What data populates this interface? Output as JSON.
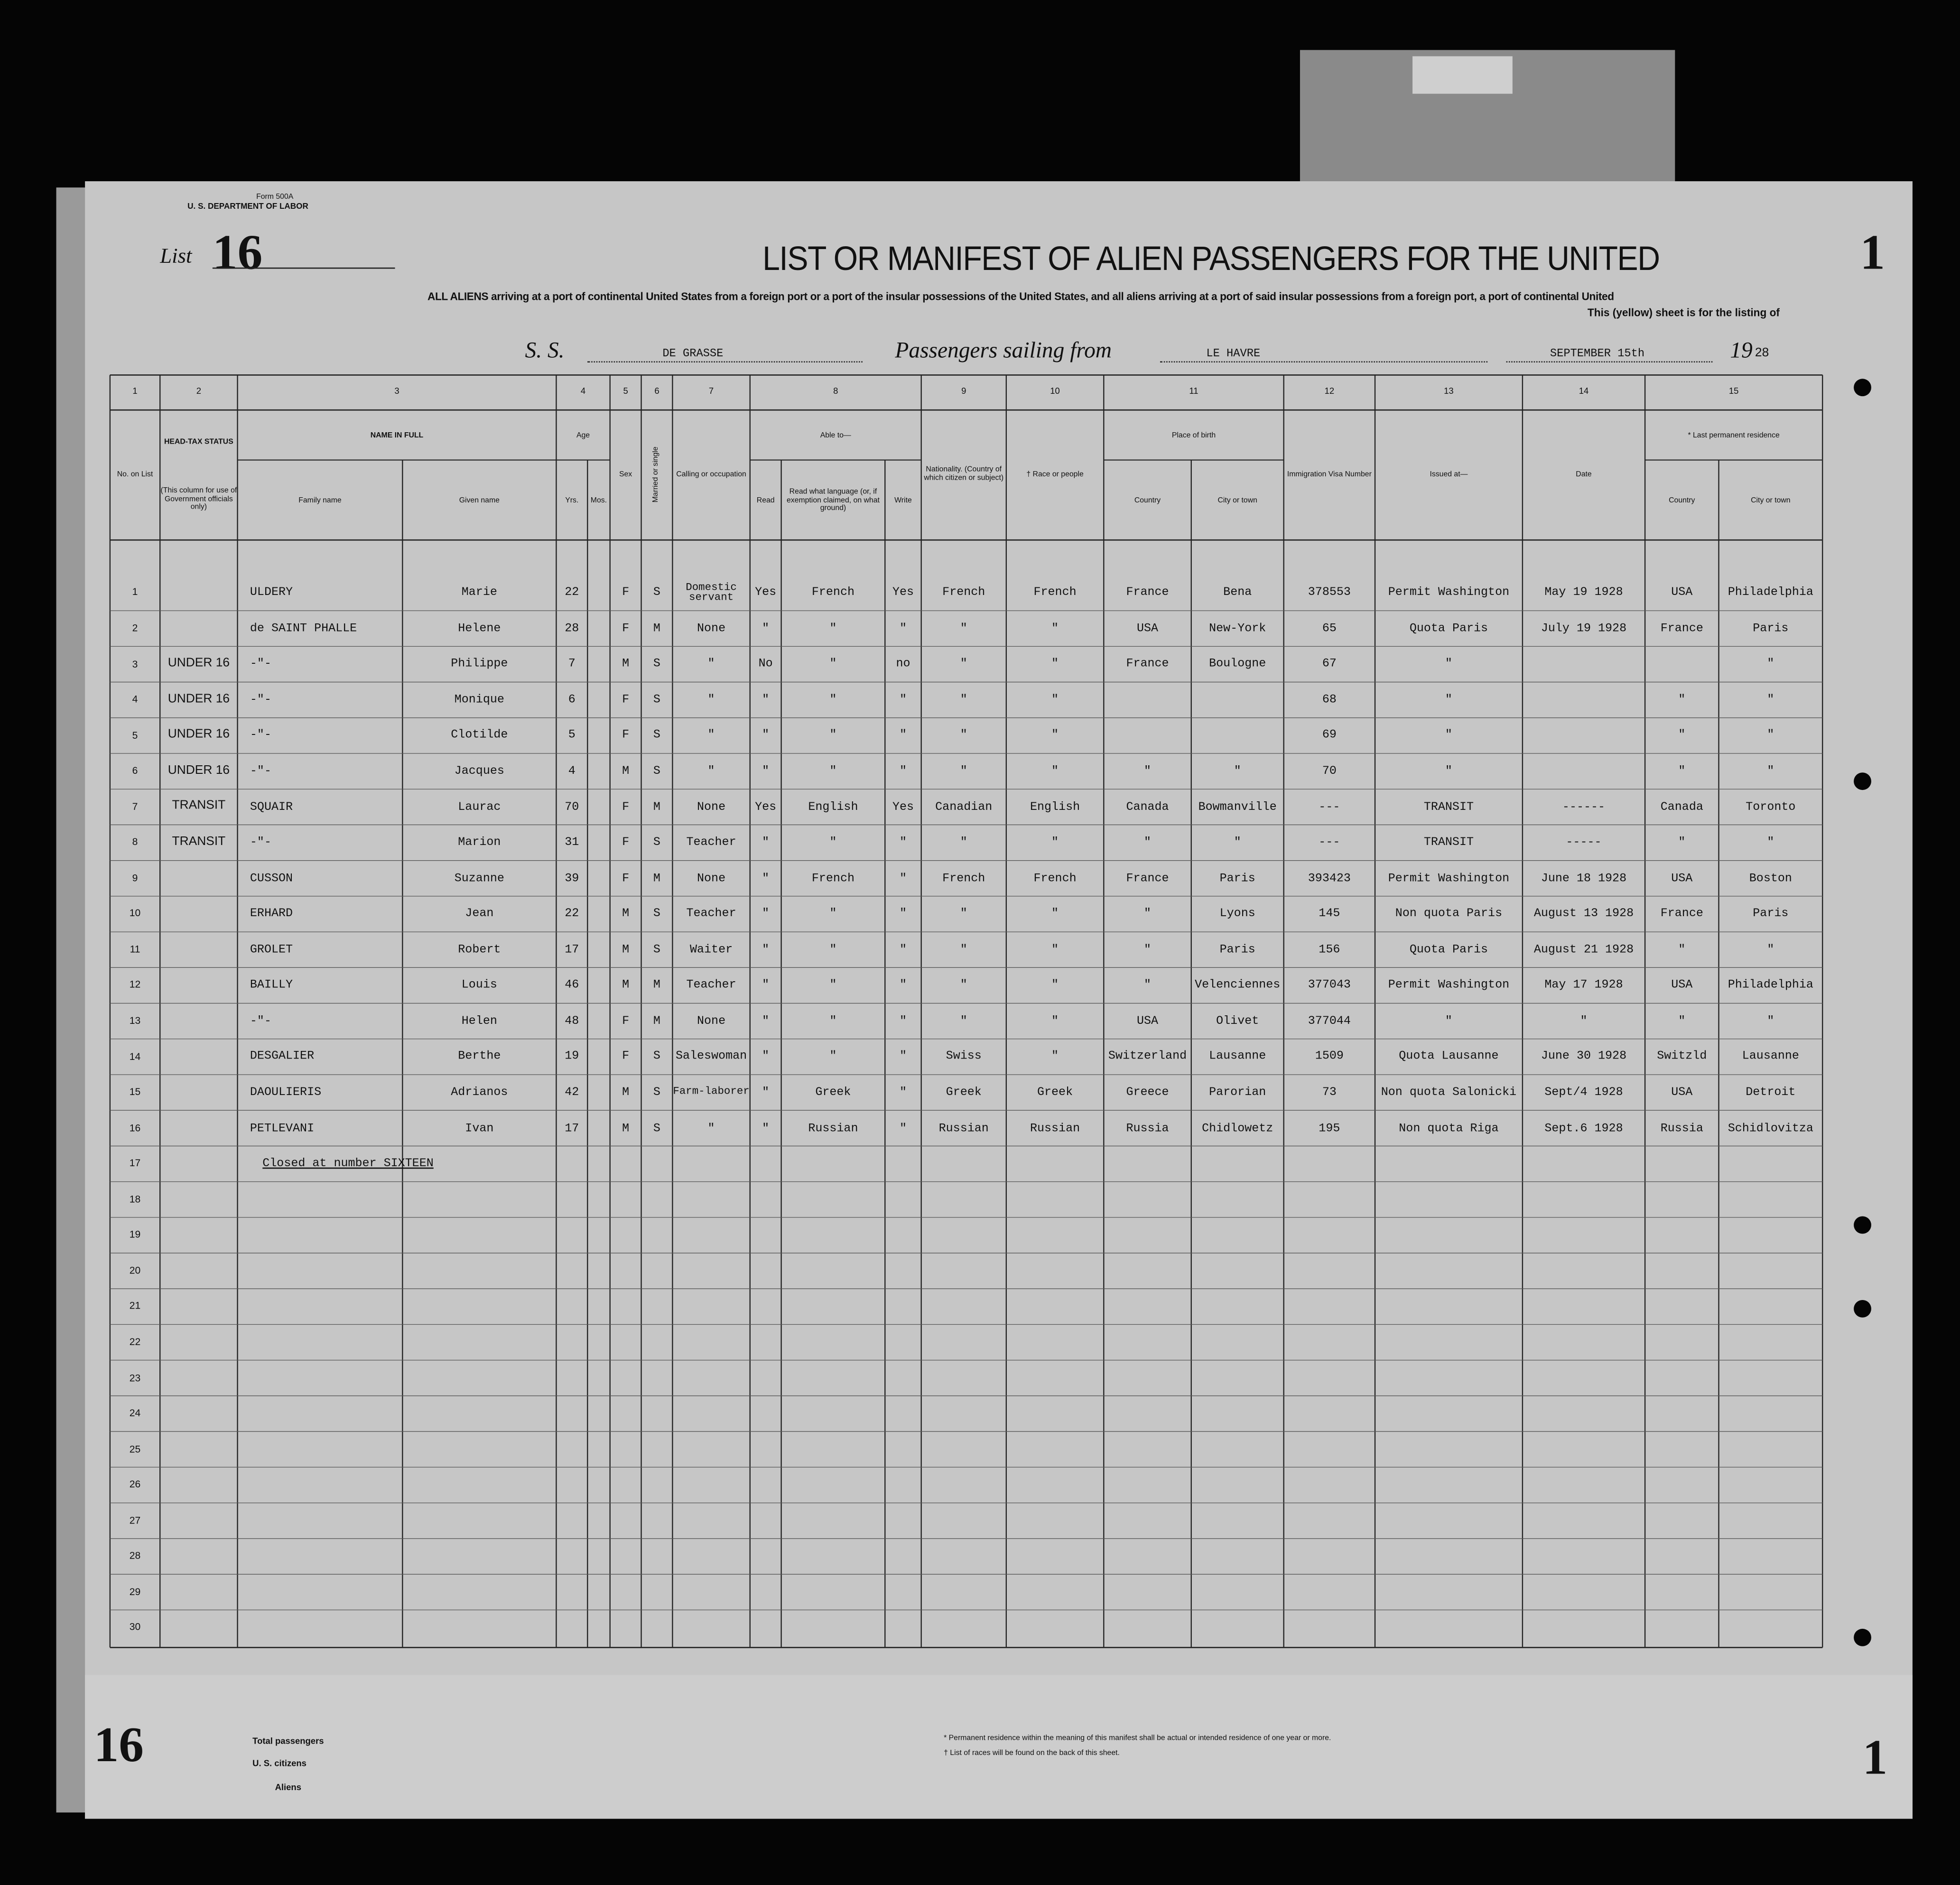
{
  "form": {
    "number": "Form 500A",
    "department": "U. S. DEPARTMENT OF LABOR"
  },
  "list_label": "List",
  "list_number": "16",
  "title": "LIST OR MANIFEST OF ALIEN PASSENGERS FOR THE UNITED",
  "page_number": "1",
  "subtitle": [
    "ALL ALIENS arriving at a port of continental United States from a foreign port or a port of the insular possessions of the United States, and all aliens arriving at a port of said insular possessions from a foreign port, a port of continental United",
    "This (yellow) sheet is for the listing of"
  ],
  "voyage": {
    "ss_label": "S. S.",
    "ship": "DE GRASSE",
    "sailing_label": "Passengers sailing from",
    "port": "LE HAVRE",
    "date": "SEPTEMBER 15th",
    "year_prefix": "19",
    "year_suffix": "28"
  },
  "columns": {
    "numbers": [
      "1",
      "2",
      "3",
      "4",
      "5",
      "6",
      "7",
      "8",
      "9",
      "10",
      "11",
      "12",
      "13",
      "14",
      "15"
    ],
    "headers": [
      "No. on List",
      "HEAD-TAX STATUS",
      "(This column for use of Government officials only)",
      "NAME IN FULL",
      "Family name",
      "Given name",
      "Age",
      "Yrs.",
      "Mos.",
      "Sex",
      "Married or single",
      "Calling or occupation",
      "Able to—",
      "Read",
      "Read what language (or, if exemption claimed, on what ground)",
      "Write",
      "Nationality. (Country of which citizen or subject)",
      "† Race or people",
      "Place of birth",
      "Country",
      "City or town",
      "Immigration Visa Number",
      "Issued at—",
      "Date",
      "* Last permanent residence",
      "Country",
      "City or town"
    ]
  },
  "rows": [
    {
      "no": "1",
      "cells": [
        null,
        "ULDERY",
        "Marie",
        "22",
        null,
        "F",
        "S",
        "Domestic servant",
        "Yes",
        "French",
        "Yes",
        "French",
        "French",
        "France",
        "Bena",
        "378553",
        "Permit Washington",
        "May 19 1928",
        "USA",
        "Philadelphia"
      ]
    },
    {
      "no": "2",
      "cells": [
        null,
        "de SAINT PHALLE",
        "Helene",
        "28",
        null,
        "F",
        "M",
        "None",
        "\"",
        "\"",
        "\"",
        "\"",
        "\"",
        "USA",
        "New-York",
        "65",
        "Quota Paris",
        "July 19 1928",
        "France",
        "Paris"
      ]
    },
    {
      "no": "3",
      "cells": [
        "UNDER 16",
        "-\"-",
        "Philippe",
        "7",
        null,
        "M",
        "S",
        "\"",
        "No",
        "\"",
        "no",
        "\"",
        "\"",
        "France",
        "Boulogne",
        "67",
        "\"",
        null,
        null,
        "\""
      ]
    },
    {
      "no": "4",
      "cells": [
        "UNDER 16",
        "-\"-",
        "Monique",
        "6",
        null,
        "F",
        "S",
        "\"",
        "\"",
        "\"",
        "\"",
        "\"",
        "\"",
        null,
        null,
        "68",
        "\"",
        null,
        "\"",
        "\""
      ]
    },
    {
      "no": "5",
      "cells": [
        "UNDER 16",
        "-\"-",
        "Clotilde",
        "5",
        null,
        "F",
        "S",
        "\"",
        "\"",
        "\"",
        "\"",
        "\"",
        "\"",
        null,
        null,
        "69",
        "\"",
        null,
        "\"",
        "\""
      ]
    },
    {
      "no": "6",
      "cells": [
        "UNDER 16",
        "-\"-",
        "Jacques",
        "4",
        null,
        "M",
        "S",
        "\"",
        "\"",
        "\"",
        "\"",
        "\"",
        "\"",
        "\"",
        "\"",
        "70",
        "\"",
        null,
        "\"",
        "\""
      ]
    },
    {
      "no": "7",
      "cells": [
        "TRANSIT",
        "SQUAIR",
        "Laurac",
        "70",
        null,
        "F",
        "M",
        "None",
        "Yes",
        "English",
        "Yes",
        "Canadian",
        "English",
        "Canada",
        "Bowmanville",
        "---",
        "TRANSIT",
        "------",
        "Canada",
        "Toronto"
      ]
    },
    {
      "no": "8",
      "cells": [
        "TRANSIT",
        "-\"-",
        "Marion",
        "31",
        null,
        "F",
        "S",
        "Teacher",
        "\"",
        "\"",
        "\"",
        "\"",
        "\"",
        "\"",
        "\"",
        "---",
        "TRANSIT",
        "-----",
        "\"",
        "\""
      ]
    },
    {
      "no": "9",
      "cells": [
        null,
        "CUSSON",
        "Suzanne",
        "39",
        null,
        "F",
        "M",
        "None",
        "\"",
        "French",
        "\"",
        "French",
        "French",
        "France",
        "Paris",
        "393423",
        "Permit Washington",
        "June 18 1928",
        "USA",
        "Boston"
      ]
    },
    {
      "no": "10",
      "cells": [
        null,
        "ERHARD",
        "Jean",
        "22",
        null,
        "M",
        "S",
        "Teacher",
        "\"",
        "\"",
        "\"",
        "\"",
        "\"",
        "\"",
        "Lyons",
        "145",
        "Non quota Paris",
        "August 13 1928",
        "France",
        "Paris"
      ]
    },
    {
      "no": "11",
      "cells": [
        null,
        "GROLET",
        "Robert",
        "17",
        null,
        "M",
        "S",
        "Waiter",
        "\"",
        "\"",
        "\"",
        "\"",
        "\"",
        "\"",
        "Paris",
        "156",
        "Quota Paris",
        "August 21 1928",
        "\"",
        "\""
      ]
    },
    {
      "no": "12",
      "cells": [
        null,
        "BAILLY",
        "Louis",
        "46",
        null,
        "M",
        "M",
        "Teacher",
        "\"",
        "\"",
        "\"",
        "\"",
        "\"",
        "\"",
        "Velenciennes",
        "377043",
        "Permit Washington",
        "May 17 1928",
        "USA",
        "Philadelphia"
      ]
    },
    {
      "no": "13",
      "cells": [
        null,
        "-\"-",
        "Helen",
        "48",
        null,
        "F",
        "M",
        "None",
        "\"",
        "\"",
        "\"",
        "\"",
        "\"",
        "USA",
        "Olivet",
        "377044",
        "\"",
        "\"",
        "\"",
        "\""
      ]
    },
    {
      "no": "14",
      "cells": [
        null,
        "DESGALIER",
        "Berthe",
        "19",
        null,
        "F",
        "S",
        "Saleswoman",
        "\"",
        "\"",
        "\"",
        "Swiss",
        "\"",
        "Switzerland",
        "Lausanne",
        "1509",
        "Quota Lausanne",
        "June 30 1928",
        "Switzld",
        "Lausanne"
      ]
    },
    {
      "no": "15",
      "cells": [
        null,
        "DAOULIERIS",
        "Adrianos",
        "42",
        null,
        "M",
        "S",
        "Farm-laborer",
        "\"",
        "Greek",
        "\"",
        "Greek",
        "Greek",
        "Greece",
        "Parorian",
        "73",
        "Non quota Salonicki",
        "Sept/4 1928",
        "USA",
        "Detroit"
      ]
    },
    {
      "no": "16",
      "cells": [
        null,
        "PETLEVANI",
        "Ivan",
        "17",
        null,
        "M",
        "S",
        "\"",
        "\"",
        "Russian",
        "\"",
        "Russian",
        "Russian",
        "Russia",
        "Chidlowetz",
        "195",
        "Non quota Riga",
        "Sept.6 1928",
        "Russia",
        "Schidlovitza"
      ]
    },
    {
      "no": "17",
      "note": "Closed at number SIXTEEN"
    },
    {
      "no": "18"
    },
    {
      "no": "19"
    },
    {
      "no": "20"
    },
    {
      "no": "21"
    },
    {
      "no": "22"
    },
    {
      "no": "23"
    },
    {
      "no": "24"
    },
    {
      "no": "25"
    },
    {
      "no": "26"
    },
    {
      "no": "27"
    },
    {
      "no": "28"
    },
    {
      "no": "29"
    },
    {
      "no": "30"
    }
  ],
  "footer": {
    "list_number": "16",
    "totals": [
      "Total passengers",
      "U. S. citizens",
      "Aliens"
    ],
    "footnotes": [
      "* Permanent residence within the meaning of this manifest shall be actual or intended residence of one year or more.",
      "† List of races will be found on the back of this sheet."
    ],
    "page_number": "1"
  }
}
